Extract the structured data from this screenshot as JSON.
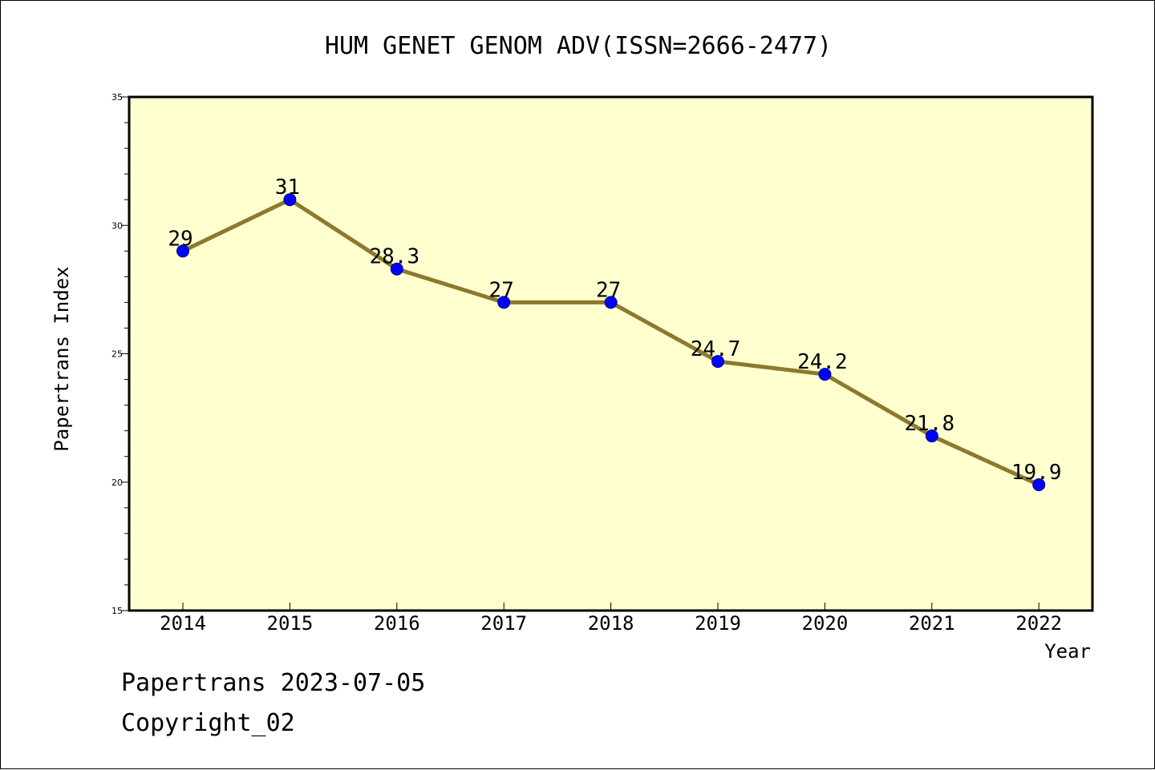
{
  "chart_data": {
    "type": "line",
    "title": "HUM GENET GENOM ADV(ISSN=2666-2477)",
    "xlabel": "Year",
    "ylabel": "Papertrans Index",
    "categories": [
      "2014",
      "2015",
      "2016",
      "2017",
      "2018",
      "2019",
      "2020",
      "2021",
      "2022"
    ],
    "series": [
      {
        "values": [
          29,
          31,
          28.3,
          27,
          27,
          24.7,
          24.2,
          21.8,
          19.9
        ],
        "labels": [
          "29",
          "31",
          "28.3",
          "27",
          "27",
          "24.7",
          "24.2",
          "21.8",
          "19.9"
        ]
      }
    ],
    "ylim": [
      15,
      35
    ],
    "yticks": [
      "15",
      "20",
      "25",
      "30",
      "35"
    ],
    "grid": false,
    "colors": {
      "plot_background": "#ffffd0",
      "line": "#8b7a2e",
      "marker": "#0000ff"
    }
  },
  "footer": {
    "line1": "Papertrans 2023-07-05",
    "line2": "Copyright_02"
  }
}
